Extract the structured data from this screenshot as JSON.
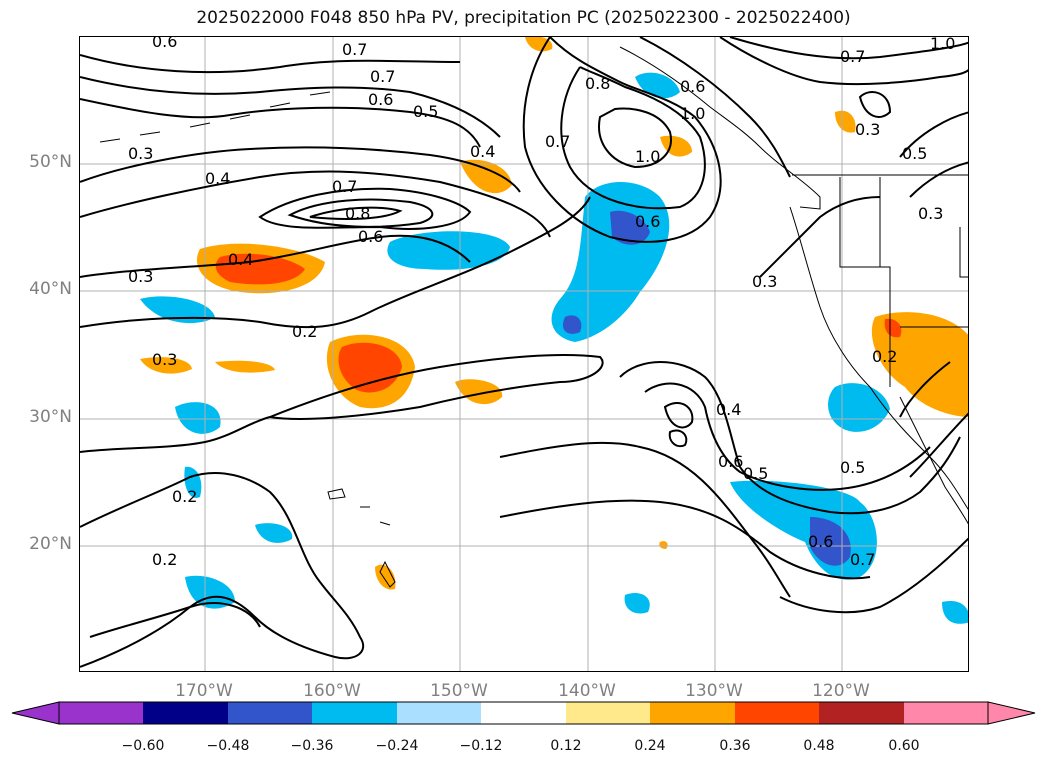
{
  "title": "2025022000 F048 850 hPa PV, precipitation PC (2025022300 - 2025022400)",
  "lat_labels": [
    "50°N",
    "40°N",
    "30°N",
    "20°N"
  ],
  "lon_labels": [
    "170°W",
    "160°W",
    "150°W",
    "140°W",
    "130°W",
    "120°W"
  ],
  "colorbar": {
    "ticks": [
      "−0.60",
      "−0.48",
      "−0.36",
      "−0.24",
      "−0.12",
      "0.12",
      "0.24",
      "0.36",
      "0.48",
      "0.60"
    ],
    "colors": [
      "#9933cc",
      "#000088",
      "#3355cc",
      "#00bbf0",
      "#aadfff",
      "#ffffff",
      "#ffe98a",
      "#ffa500",
      "#ff4500",
      "#b22222",
      "#ff88aa"
    ]
  },
  "contour_labels": [
    "0.6",
    "0.7",
    "0.7",
    "0.6",
    "0.5",
    "0.3",
    "0.4",
    "0.7",
    "0.8",
    "0.6",
    "0.3",
    "0.4",
    "0.2",
    "0.3",
    "0.2",
    "0.2",
    "0.4",
    "0.8",
    "1.0",
    "0.7",
    "1.0",
    "0.6",
    "0.3",
    "0.4",
    "0.6",
    "0.5",
    "0.5",
    "0.6",
    "0.7",
    "0.2",
    "0.3",
    "0.5",
    "0.3",
    "0.6",
    "1.0",
    "0.7"
  ]
}
